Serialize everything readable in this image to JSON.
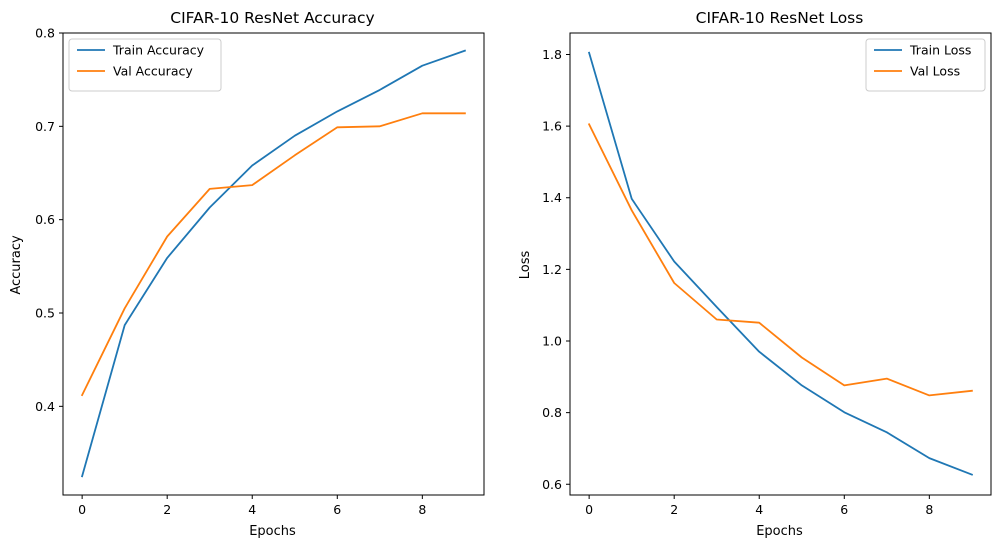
{
  "chart_data": [
    {
      "type": "line",
      "title": "CIFAR-10 ResNet Accuracy",
      "xlabel": "Epochs",
      "ylabel": "Accuracy",
      "x": [
        0,
        1,
        2,
        3,
        4,
        5,
        6,
        7,
        8,
        9
      ],
      "xlim": [
        -0.45,
        9.45
      ],
      "ylim": [
        0.305,
        0.8
      ],
      "xticks": [
        "0",
        "2",
        "4",
        "6",
        "8"
      ],
      "xtick_values": [
        0,
        2,
        4,
        6,
        8
      ],
      "yticks": [
        "0.4",
        "0.5",
        "0.6",
        "0.7",
        "0.8"
      ],
      "ytick_values": [
        0.4,
        0.5,
        0.6,
        0.7,
        0.8
      ],
      "legend": "upper left",
      "grid": false,
      "series": [
        {
          "name": "Train Accuracy",
          "color": "#1f77b4",
          "values": [
            0.325,
            0.487,
            0.559,
            0.613,
            0.658,
            0.69,
            0.716,
            0.739,
            0.765,
            0.781
          ]
        },
        {
          "name": "Val Accuracy",
          "color": "#ff7f0e",
          "values": [
            0.412,
            0.505,
            0.582,
            0.633,
            0.637,
            0.669,
            0.699,
            0.7,
            0.714,
            0.714
          ]
        }
      ]
    },
    {
      "type": "line",
      "title": "CIFAR-10 ResNet Loss",
      "xlabel": "Epochs",
      "ylabel": "Loss",
      "x": [
        0,
        1,
        2,
        3,
        4,
        5,
        6,
        7,
        8,
        9
      ],
      "xlim": [
        -0.45,
        9.45
      ],
      "ylim": [
        0.57,
        1.86
      ],
      "xticks": [
        "0",
        "2",
        "4",
        "6",
        "8"
      ],
      "xtick_values": [
        0,
        2,
        4,
        6,
        8
      ],
      "yticks": [
        "0.6",
        "0.8",
        "1.0",
        "1.2",
        "1.4",
        "1.6",
        "1.8"
      ],
      "ytick_values": [
        0.6,
        0.8,
        1.0,
        1.2,
        1.4,
        1.6,
        1.8
      ],
      "legend": "upper right",
      "grid": false,
      "series": [
        {
          "name": "Train Loss",
          "color": "#1f77b4",
          "values": [
            1.805,
            1.397,
            1.222,
            1.095,
            0.97,
            0.876,
            0.801,
            0.745,
            0.673,
            0.627
          ]
        },
        {
          "name": "Val Loss",
          "color": "#ff7f0e",
          "values": [
            1.605,
            1.365,
            1.162,
            1.06,
            1.051,
            0.954,
            0.876,
            0.895,
            0.848,
            0.861
          ]
        }
      ]
    }
  ]
}
